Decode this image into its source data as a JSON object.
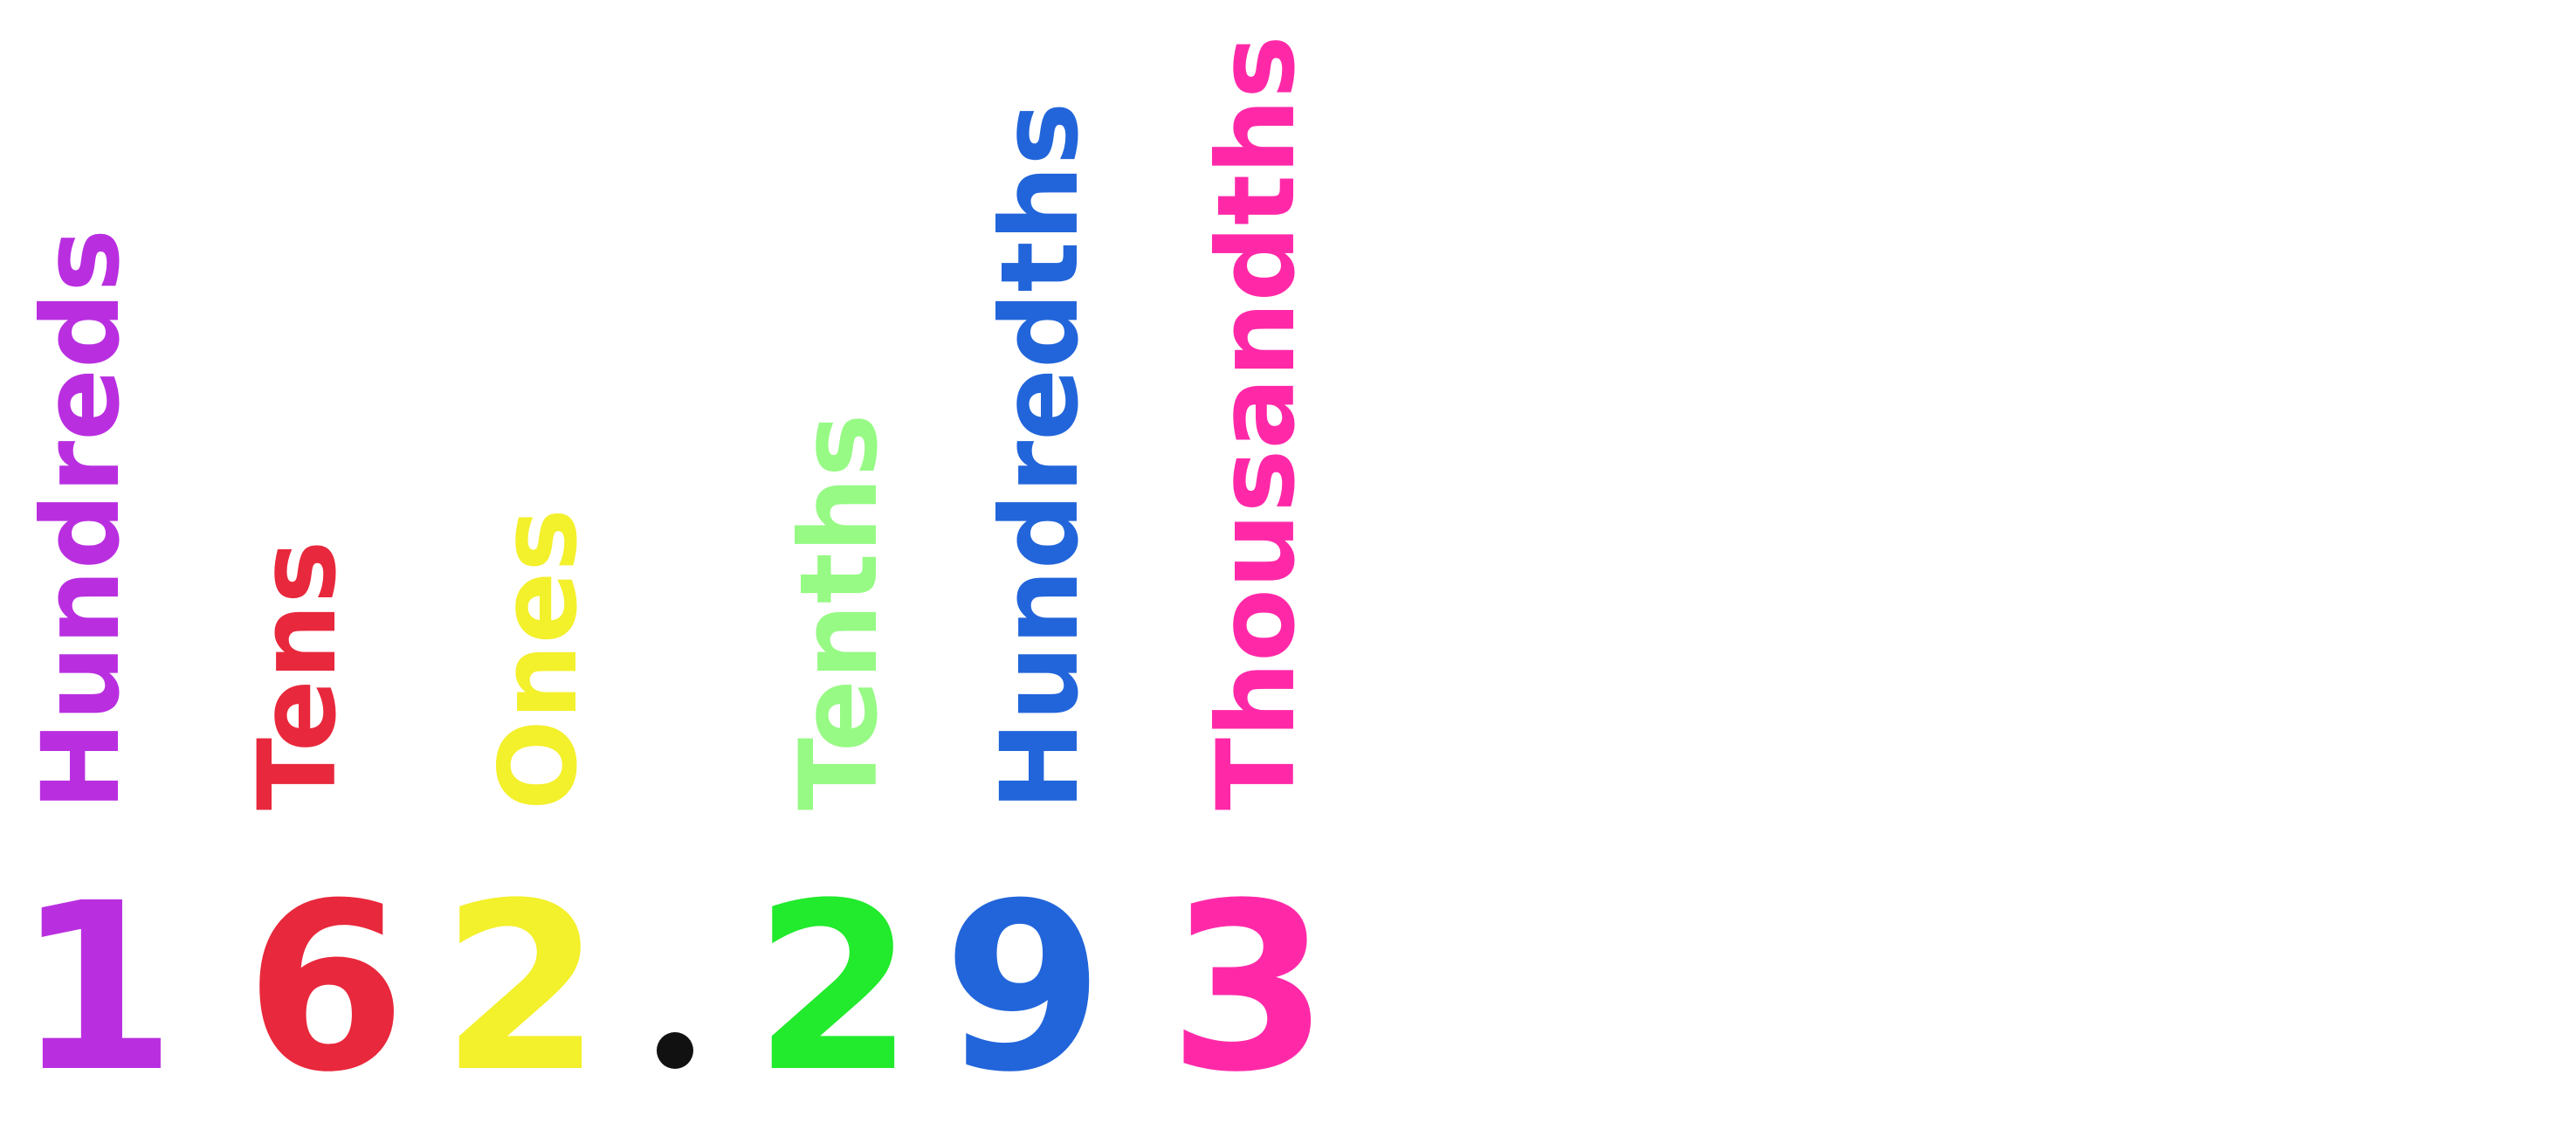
{
  "place_values": [
    {
      "label": "Hundreds",
      "digit": "1",
      "color": "#b92fe0"
    },
    {
      "label": "Tens",
      "digit": "6",
      "color": "#e8283c"
    },
    {
      "label": "Ones",
      "digit": "2",
      "color": "#f3f02c"
    },
    {
      "label": "Tenths",
      "digit": "2",
      "label_color": "#96fa84",
      "digit_color": "#22ea2c"
    },
    {
      "label": "Hundredths",
      "digit": "9",
      "color": "#2265da"
    },
    {
      "label": "Thousandths",
      "digit": "3",
      "color": "#ff29a8"
    }
  ],
  "decimal_point": ".",
  "number": "162.293"
}
